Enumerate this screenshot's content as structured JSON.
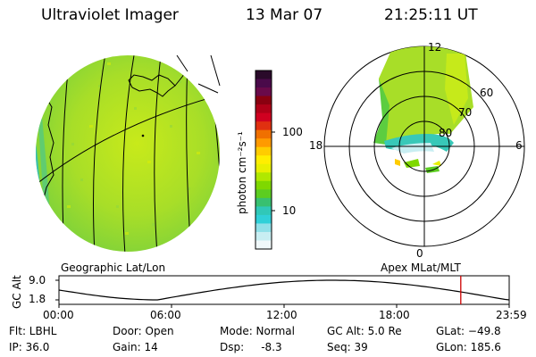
{
  "header": {
    "instrument": "Ultraviolet Imager",
    "date": "13 Mar 07",
    "time": "21:25:11 UT"
  },
  "left_panel": {
    "caption": "Geographic Lat/Lon"
  },
  "right_panel": {
    "caption": "Apex MLat/MLT",
    "mlt_labels": [
      "12",
      "18",
      "6",
      "0"
    ],
    "lat_labels": [
      "60",
      "70",
      "80"
    ]
  },
  "colorbar": {
    "unit": "photon cm⁻²s⁻¹",
    "ticks": [
      "100",
      "10"
    ],
    "colors": [
      "#2a0a2a",
      "#4a0a4a",
      "#6a0a4a",
      "#8a0010",
      "#b00018",
      "#d00020",
      "#e03010",
      "#f07000",
      "#ff9a00",
      "#ffcc00",
      "#ffee00",
      "#e8f000",
      "#b0e800",
      "#7fd800",
      "#5ccd20",
      "#38c070",
      "#30c8b8",
      "#30d0d8",
      "#90e0e8",
      "#c8eef2",
      "#f0f8fa"
    ]
  },
  "altitude_plot": {
    "axis_label": "GC Alt",
    "y_ticks": [
      "9.0",
      "1.8"
    ],
    "x_ticks": [
      "00:00",
      "06:00",
      "12:00",
      "18:00",
      "23:59"
    ],
    "line_color": "#000000",
    "marker_color": "#cc0000"
  },
  "status": {
    "flt": "Flt: LBHL",
    "ip": "IP: 36.0",
    "door": "Door: Open",
    "gain": "Gain: 14",
    "mode": "Mode: Normal",
    "dsp": "Dsp:     -8.3",
    "gc_alt": "GC Alt: 5.0 Re",
    "seq": "Seq: 39",
    "glat": "GLat: −49.8",
    "glon": "GLon: 185.6"
  }
}
